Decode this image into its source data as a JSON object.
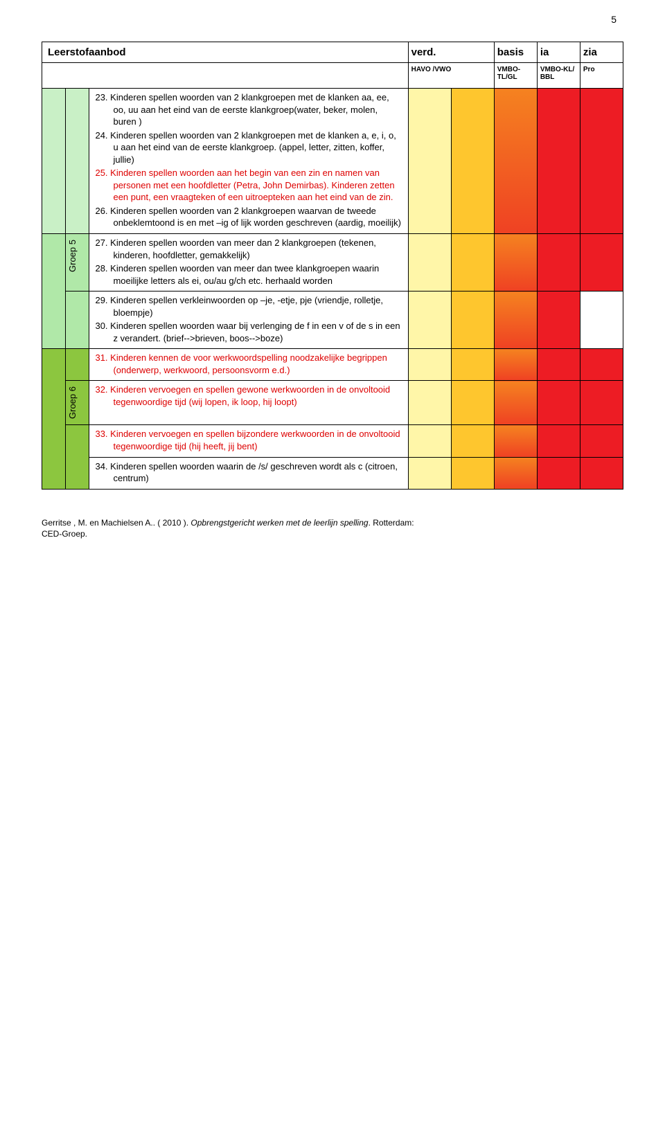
{
  "page_number": "5",
  "header": {
    "main": "Leerstofaanbod",
    "cols": [
      "verd.",
      "basis",
      "ia",
      "zia"
    ],
    "subs": [
      "HAVO /VWO",
      "VMBO-TL/GL",
      "VMBO-KL/ BBL",
      "Pro"
    ]
  },
  "side_labels": {
    "g5": "Groep 5",
    "g6": "Groep 6"
  },
  "colors": {
    "side_g5_top": "#c9f0c6",
    "side_g5": "#b0e8a8",
    "side_g6": "#8cc63f",
    "col1": "#fff6a8",
    "col2": "#fec62e",
    "col3": "linear-gradient(to bottom,#f58220,#ef4123)",
    "col4": "#ed1c24",
    "white": "#ffffff"
  },
  "rows": [
    {
      "side_bg": "#c9f0c6",
      "side_text": "",
      "items": [
        {
          "n": "23.",
          "t": "Kinderen spellen woorden van 2 klankgroepen met de klanken aa, ee, oo, uu aan het eind van de eerste klankgroep(water, beker, molen, buren )",
          "red": false
        },
        {
          "n": "24.",
          "t": "Kinderen spellen woorden van 2 klankgroepen met de klanken a, e, i, o, u aan het eind van de eerste klankgroep. (appel, letter, zitten, koffer, jullie)",
          "red": false
        },
        {
          "n": "25.",
          "t": "Kinderen spellen woorden aan het begin van een zin en namen van personen met een hoofdletter (Petra, John Demirbas). Kinderen zetten een punt, een vraagteken of een uitroepteken aan het eind van de zin.",
          "red": true
        },
        {
          "n": "26.",
          "t": "Kinderen spellen woorden van 2 klankgroepen waarvan de tweede onbeklemtoond is en met –ig of lijk worden geschreven (aardig, moeilijk)",
          "red": false
        }
      ],
      "c": [
        "#fff6a8",
        "#fec62e",
        "g",
        "#ed1c24",
        "#ed1c24"
      ]
    },
    {
      "side_bg": "#b0e8a8",
      "side_text": "Groep 5",
      "items": [
        {
          "n": "27.",
          "t": "Kinderen spellen woorden van meer dan 2 klankgroepen (tekenen, kinderen, hoofdletter, gemakkelijk)",
          "red": false
        },
        {
          "n": "28.",
          "t": "Kinderen spellen woorden van meer dan twee klankgroepen waarin moeilijke letters als ei, ou/au g/ch etc. herhaald worden",
          "red": false
        }
      ],
      "c": [
        "#fff6a8",
        "#fec62e",
        "g",
        "#ed1c24",
        "#ed1c24"
      ]
    },
    {
      "side_bg": "#b0e8a8",
      "side_text": "",
      "items": [
        {
          "n": "29.",
          "t": " Kinderen spellen verkleinwoorden op –je, -etje, pje (vriendje, rolletje, bloempje)",
          "red": false
        },
        {
          "n": "30.",
          "t": "Kinderen spellen woorden waar bij verlenging de f in een v of de s in een z verandert. (brief-->brieven, boos-->boze)",
          "red": false
        }
      ],
      "c": [
        "#fff6a8",
        "#fec62e",
        "g",
        "#ed1c24",
        "#ffffff"
      ]
    },
    {
      "side_bg": "#8cc63f",
      "side_text": "",
      "items": [
        {
          "n": "31.",
          "t": "Kinderen kennen de voor werkwoordspelling noodzakelijke begrippen (onderwerp, werkwoord, persoonsvorm e.d.)",
          "red": true
        }
      ],
      "c": [
        "#fff6a8",
        "#fec62e",
        "g",
        "#ed1c24",
        "#ed1c24"
      ]
    },
    {
      "side_bg": "#8cc63f",
      "side_text": "Groep 6",
      "items": [
        {
          "n": "32.",
          "t": "Kinderen vervoegen en spellen gewone werkwoorden in de onvoltooid tegenwoordige tijd (wij lopen, ik loop, hij loopt)",
          "red": true
        }
      ],
      "c": [
        "#fff6a8",
        "#fec62e",
        "g",
        "#ed1c24",
        "#ed1c24"
      ]
    },
    {
      "side_bg": "#8cc63f",
      "side_text": "",
      "items": [
        {
          "n": "33.",
          "t": "Kinderen vervoegen en spellen bijzondere werkwoorden in de onvoltooid tegenwoordige tijd (hij heeft, jij bent)",
          "red": true
        }
      ],
      "c": [
        "#fff6a8",
        "#fec62e",
        "g",
        "#ed1c24",
        "#ed1c24"
      ]
    },
    {
      "side_bg": "#8cc63f",
      "side_text": "",
      "items": [
        {
          "n": "34.",
          "t": "Kinderen spellen woorden waarin de /s/ geschreven wordt als c (citroen, centrum)",
          "red": false
        }
      ],
      "c": [
        "#fff6a8",
        "#fec62e",
        "g",
        "#ed1c24",
        "#ed1c24"
      ]
    }
  ],
  "footer": {
    "line1a": "Gerritse , M. en Machielsen A.. ( 2010 ). ",
    "line1b": "Opbrengstgericht werken met de leerlijn spelling",
    "line1c": ". Rotterdam:",
    "line2": "CED-Groep."
  }
}
